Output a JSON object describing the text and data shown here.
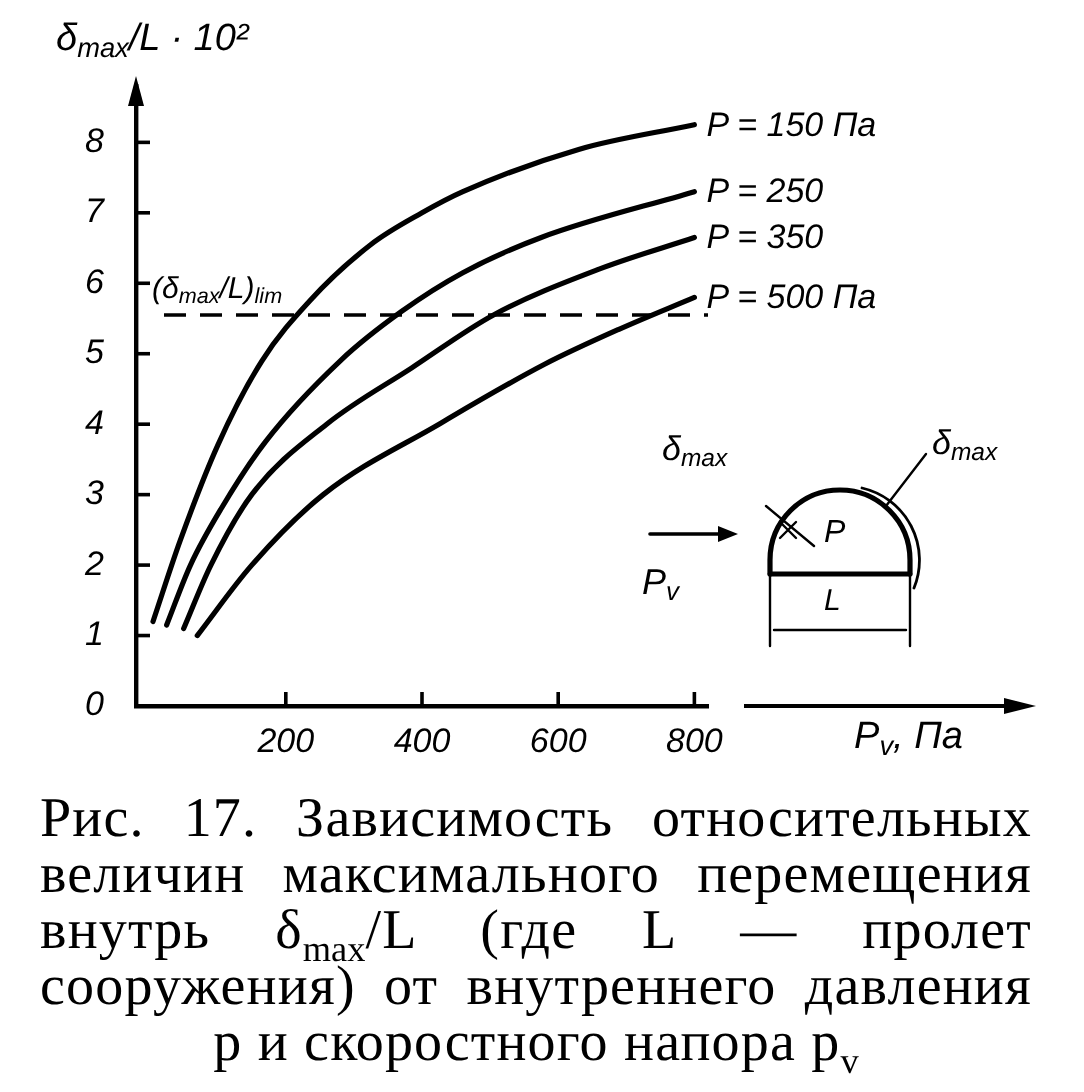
{
  "chart_data": {
    "type": "line",
    "xlabel": "P$_{v}$, Па",
    "ylabel": "δ$_{max}$/L · 10²",
    "annotations": [
      "Рис. 17. Зависимость относительных величин максимального перемещения внутрь δ$_{max}$/L (где L — пролет сооружения) от внутреннего давления p и скоростного напора p$_{v}$",
      "δ$_{max}$",
      "δ$_{max}$",
      "P",
      "P$_{v}$",
      "L"
    ],
    "xlim": [
      -20,
      820
    ],
    "xticks": [
      200,
      400,
      600,
      800
    ],
    "ylim": [
      0,
      8.8
    ],
    "yticks": [
      0,
      1,
      2,
      3,
      4,
      5,
      6,
      7,
      8
    ],
    "series": [
      {
        "name": "P = 150 Па",
        "color": "#000000",
        "x": [
          5,
          45,
          100,
          165,
          235,
          325,
          400,
          460,
          630,
          800
        ],
        "values": [
          1.2,
          2.35,
          3.7,
          4.9,
          5.75,
          6.55,
          7.0,
          7.3,
          7.9,
          8.25
        ]
      },
      {
        "name": "P = 250",
        "color": "#000000",
        "x": [
          25,
          60,
          105,
          170,
          280,
          370,
          460,
          575,
          800
        ],
        "values": [
          1.15,
          2.0,
          2.8,
          3.75,
          4.9,
          5.6,
          6.15,
          6.65,
          7.3
        ]
      },
      {
        "name": "P = 350",
        "color": "#000000",
        "x": [
          50,
          90,
          150,
          260,
          385,
          505,
          660,
          800
        ],
        "values": [
          1.1,
          2.0,
          3.0,
          4.0,
          4.8,
          5.55,
          6.2,
          6.65
        ]
      },
      {
        "name": "P = 500 Па",
        "color": "#000000",
        "x": [
          70,
          150,
          255,
          425,
          580,
          690,
          800
        ],
        "values": [
          1.0,
          2.0,
          3.0,
          4.0,
          4.85,
          5.35,
          5.8
        ]
      }
    ],
    "ref_lines": [
      {
        "axis": "y",
        "value": 5.55,
        "label": "(δ$_{max}$/L)$_{lim}$",
        "color": "#000000",
        "line_style": "dashed"
      }
    ]
  }
}
